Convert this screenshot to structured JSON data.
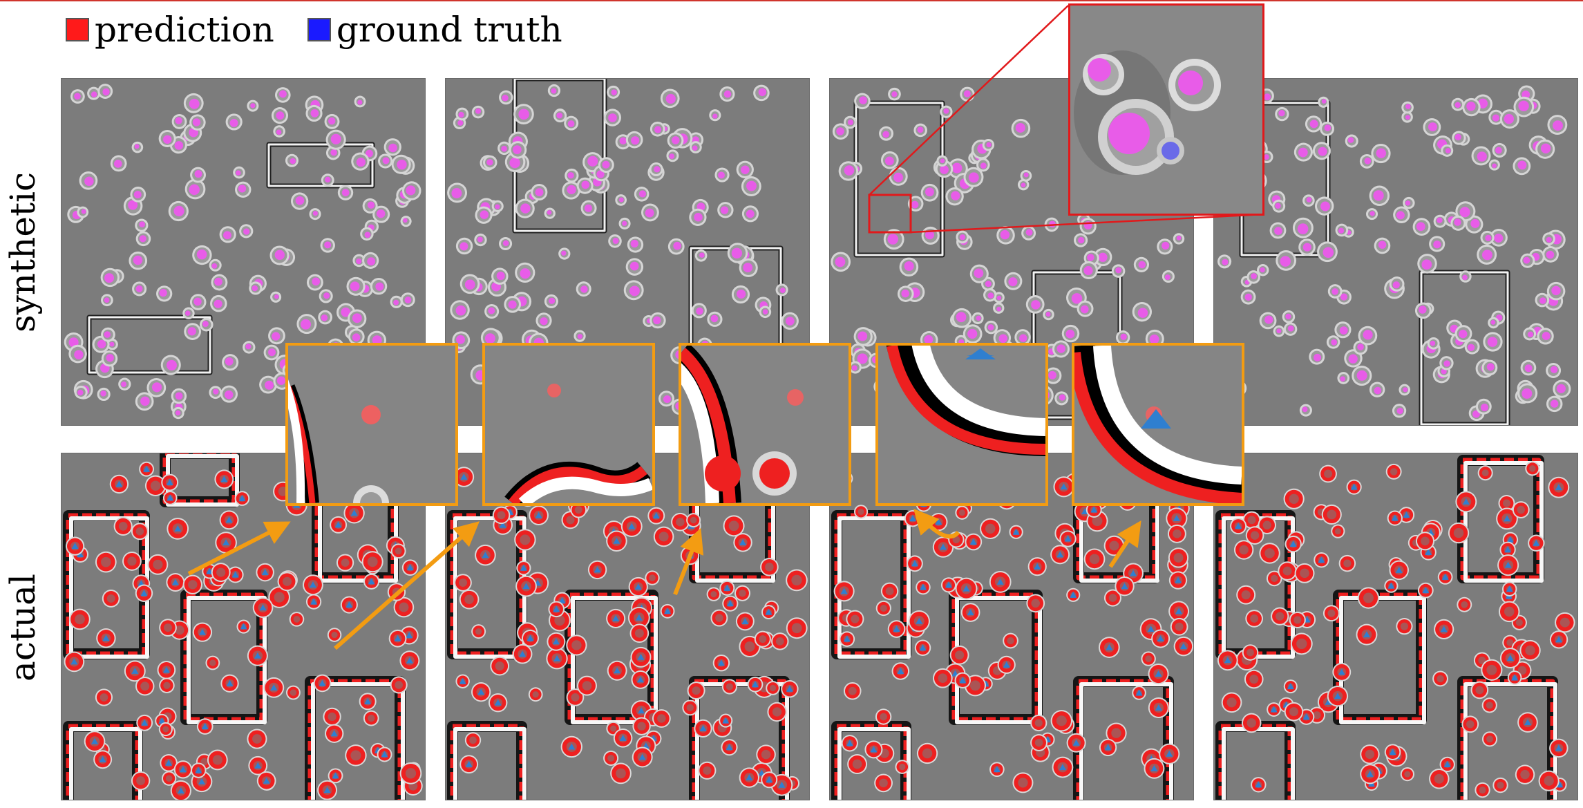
{
  "legend": {
    "prediction_label": "prediction",
    "prediction_color": "#ff1a1a",
    "ground_truth_label": "ground truth",
    "ground_truth_color": "#1a1aff"
  },
  "rows": {
    "synthetic_label": "synthetic",
    "actual_label": "actual"
  },
  "colors": {
    "panel_bg": "#7c7c7c",
    "synthetic_overlay": "#e85ce8",
    "actual_prediction": "#ee2020",
    "actual_ground_truth": "#2f7fd0",
    "zoom_frame": "#f39c12",
    "red_zoom_frame": "#e1191b",
    "arrow": "#f39c12"
  }
}
